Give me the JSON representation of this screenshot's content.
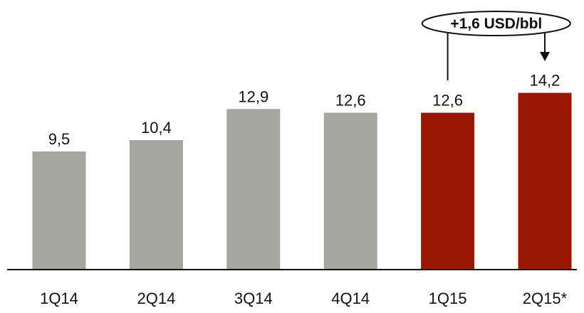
{
  "chart_data": {
    "type": "bar",
    "categories": [
      "1Q14",
      "2Q14",
      "3Q14",
      "4Q14",
      "1Q15",
      "2Q15*"
    ],
    "values": [
      9.5,
      10.4,
      12.9,
      12.6,
      12.6,
      14.2
    ],
    "value_labels": [
      "9,5",
      "10,4",
      "12,9",
      "12,6",
      "12,6",
      "14,2"
    ],
    "colors": [
      "#a6a6a1",
      "#a6a6a1",
      "#a6a6a1",
      "#a6a6a1",
      "#9b1503",
      "#9b1503"
    ],
    "title": "",
    "xlabel": "",
    "ylabel": "",
    "ylim": [
      0,
      16
    ],
    "grid": false,
    "legend": "none",
    "annotation": {
      "text": "+1,6 USD/bbl",
      "from_category": "1Q15",
      "to_category": "2Q15*"
    }
  }
}
